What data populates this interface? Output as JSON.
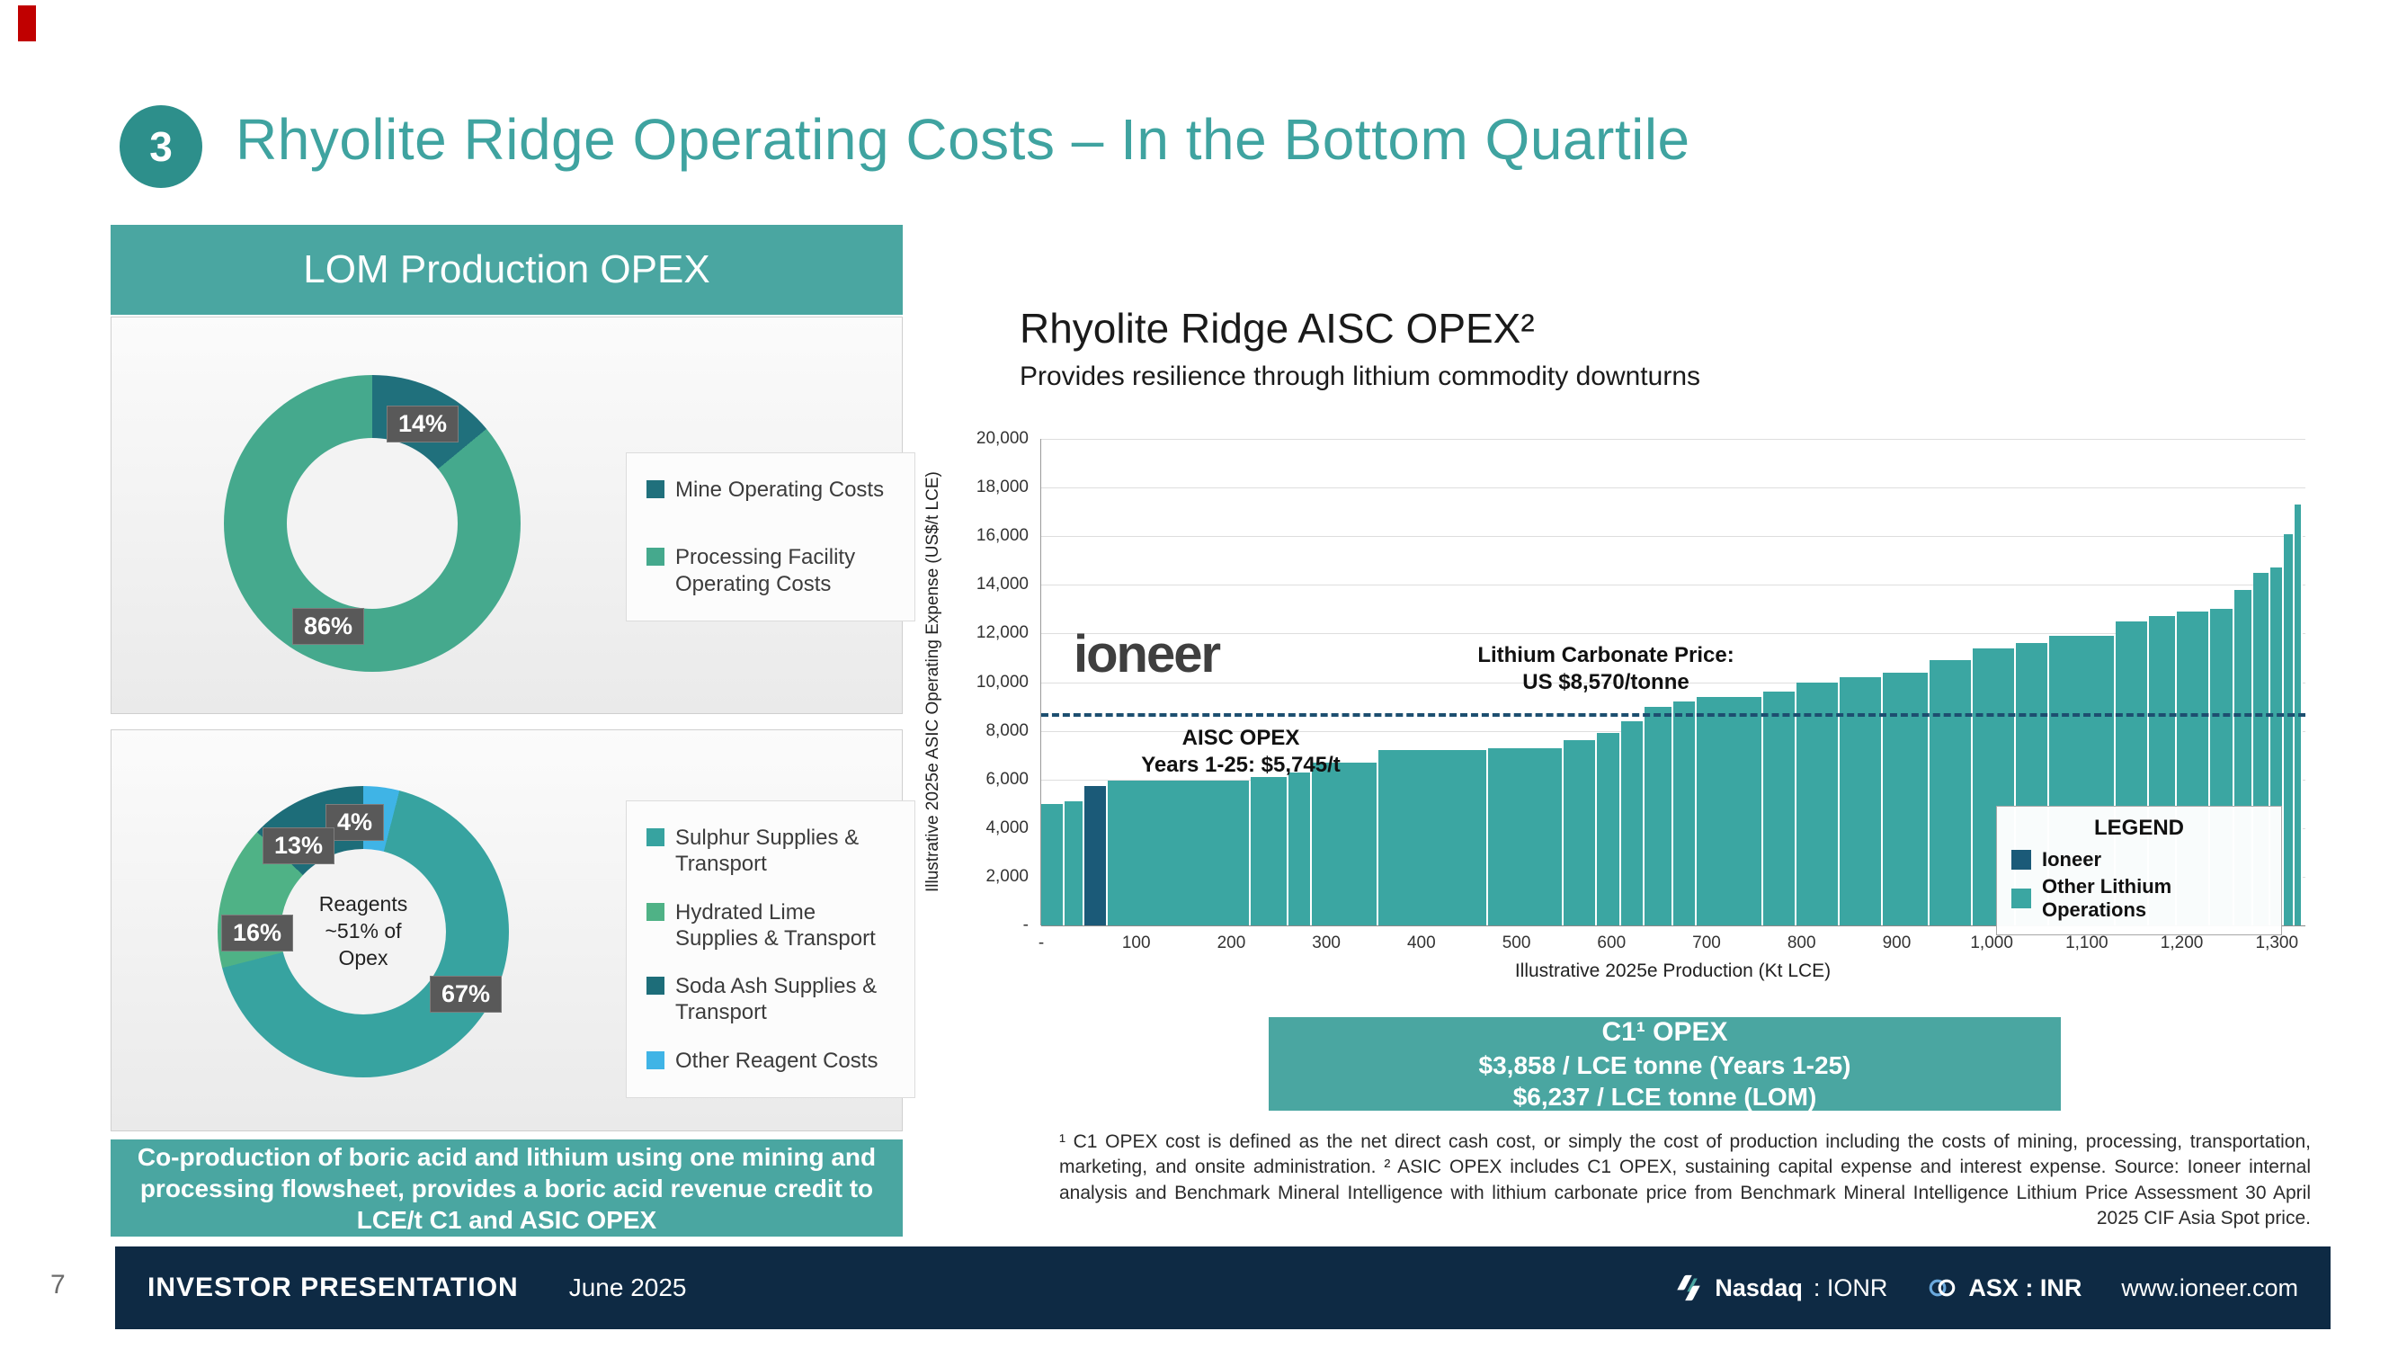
{
  "header": {
    "badge": "3",
    "title": "Rhyolite Ridge Operating Costs – In the Bottom Quartile"
  },
  "left_panel": {
    "title": "LOM Production OPEX",
    "callout": "Co-production of boric acid and lithium using one mining and processing flowsheet, provides a boric acid revenue credit to LCE/t C1 and ASIC OPEX"
  },
  "right_panel": {
    "chart_title": "Rhyolite Ridge AISC OPEX²",
    "chart_subtitle": "Provides resilience through lithium commodity downturns",
    "c1_box": {
      "line1": "C1¹ OPEX",
      "line2": "$3,858 / LCE tonne (Years 1-25)",
      "line3": "$6,237 / LCE tonne (LOM)"
    },
    "footnote": "¹ C1 OPEX cost is defined as the net direct cash cost, or simply the cost of production including the costs of mining, processing, transportation, marketing, and onsite administration. ² ASIC OPEX includes C1 OPEX, sustaining capital expense and interest expense.  Source: Ioneer internal analysis and Benchmark Mineral Intelligence with lithium carbonate price from Benchmark Mineral Intelligence Lithium Price Assessment 30 April 2025 CIF Asia Spot price."
  },
  "footer": {
    "page_number": "7",
    "label": "INVESTOR PRESENTATION",
    "date": "June 2025",
    "nasdaq_name": "Nasdaq",
    "nasdaq_ticker": ": IONR",
    "asx_listing": "ASX : INR",
    "website": "www.ioneer.com"
  },
  "colors": {
    "accent_teal": "#4aa6a1",
    "footer_navy": "#0e2a44",
    "ioneer_navy": "#1b5a78",
    "curve_teal": "#3ba6a2",
    "title_teal": "#3fa3a0",
    "chip_gray": "#595959"
  },
  "chart_data": [
    {
      "type": "pie",
      "name": "lom_opex_donut",
      "title": "LOM Production OPEX",
      "donut": true,
      "draw_order": [
        0,
        1
      ],
      "segments": [
        {
          "label": "Mine Operating Costs",
          "value": 14,
          "pct_label": "14%",
          "color": "#20707c"
        },
        {
          "label": "Processing Facility Operating Costs",
          "value": 86,
          "pct_label": "86%",
          "color": "#45a98d"
        }
      ]
    },
    {
      "type": "pie",
      "name": "reagents_donut",
      "donut": true,
      "center_lines": [
        "Reagents",
        "~51% of",
        "Opex"
      ],
      "draw_order": [
        3,
        0,
        1,
        2
      ],
      "segments": [
        {
          "label": "Sulphur Supplies & Transport",
          "value": 67,
          "pct_label": "67%",
          "color": "#37a3a0"
        },
        {
          "label": "Hydrated Lime Supplies & Transport",
          "value": 16,
          "pct_label": "16%",
          "color": "#4fb286"
        },
        {
          "label": "Soda Ash Supplies & Transport",
          "value": 13,
          "pct_label": "13%",
          "color": "#1d6d79"
        },
        {
          "label": "Other Reagent Costs",
          "value": 4,
          "pct_label": "4%",
          "color": "#3fb4e6"
        }
      ]
    },
    {
      "type": "bar",
      "name": "aisc_cost_curve",
      "title": "Rhyolite Ridge AISC OPEX²",
      "subtitle": "Provides resilience through lithium commodity downturns",
      "xlabel": "Illustrative 2025e Production (Kt LCE)",
      "ylabel": "Illustrative 2025e ASIC Operating Expense (US$/t LCE)",
      "ylim": [
        0,
        20000
      ],
      "xlim": [
        0,
        1330
      ],
      "grid": "horizontal",
      "y_ticks": [
        "20,000",
        "18,000",
        "16,000",
        "14,000",
        "12,000",
        "10,000",
        "8,000",
        "6,000",
        "4,000",
        "2,000",
        "-"
      ],
      "x_ticks": [
        "-",
        "100",
        "200",
        "300",
        "400",
        "500",
        "600",
        "700",
        "800",
        "900",
        "1,000",
        "1,100",
        "1,200",
        "1,300"
      ],
      "watermark": "ioneer",
      "price_line": {
        "value": 8570,
        "label_line1": "Lithium Carbonate Price:",
        "label_line2": "US $8,570/tonne"
      },
      "aisc_annotation": {
        "line1": "AISC OPEX",
        "line2": "Years 1-25:  $5,745/t"
      },
      "legend": {
        "title": "LEGEND",
        "position": "right-inside",
        "entries": [
          {
            "label": "Ioneer",
            "color": "#1b5a78"
          },
          {
            "label": "Other Lithium Operations",
            "color": "#3ba6a2"
          }
        ]
      },
      "segments": [
        {
          "w": 25,
          "v": 5000
        },
        {
          "w": 20,
          "v": 5100
        },
        {
          "w": 25,
          "v": 5745,
          "ioneer": true
        },
        {
          "w": 150,
          "v": 5950
        },
        {
          "w": 40,
          "v": 6100
        },
        {
          "w": 25,
          "v": 6300
        },
        {
          "w": 70,
          "v": 6700
        },
        {
          "w": 115,
          "v": 7200
        },
        {
          "w": 80,
          "v": 7300
        },
        {
          "w": 35,
          "v": 7600
        },
        {
          "w": 25,
          "v": 7900
        },
        {
          "w": 25,
          "v": 8400
        },
        {
          "w": 30,
          "v": 9000
        },
        {
          "w": 25,
          "v": 9200
        },
        {
          "w": 70,
          "v": 9400
        },
        {
          "w": 35,
          "v": 9600
        },
        {
          "w": 45,
          "v": 10000
        },
        {
          "w": 45,
          "v": 10200
        },
        {
          "w": 50,
          "v": 10400
        },
        {
          "w": 45,
          "v": 10900
        },
        {
          "w": 45,
          "v": 11400
        },
        {
          "w": 35,
          "v": 11600
        },
        {
          "w": 70,
          "v": 11900
        },
        {
          "w": 35,
          "v": 12500
        },
        {
          "w": 30,
          "v": 12700
        },
        {
          "w": 35,
          "v": 12900
        },
        {
          "w": 25,
          "v": 13000
        },
        {
          "w": 20,
          "v": 13800
        },
        {
          "w": 18,
          "v": 14500
        },
        {
          "w": 14,
          "v": 14700
        },
        {
          "w": 12,
          "v": 16100
        },
        {
          "w": 8,
          "v": 17300
        }
      ]
    }
  ]
}
